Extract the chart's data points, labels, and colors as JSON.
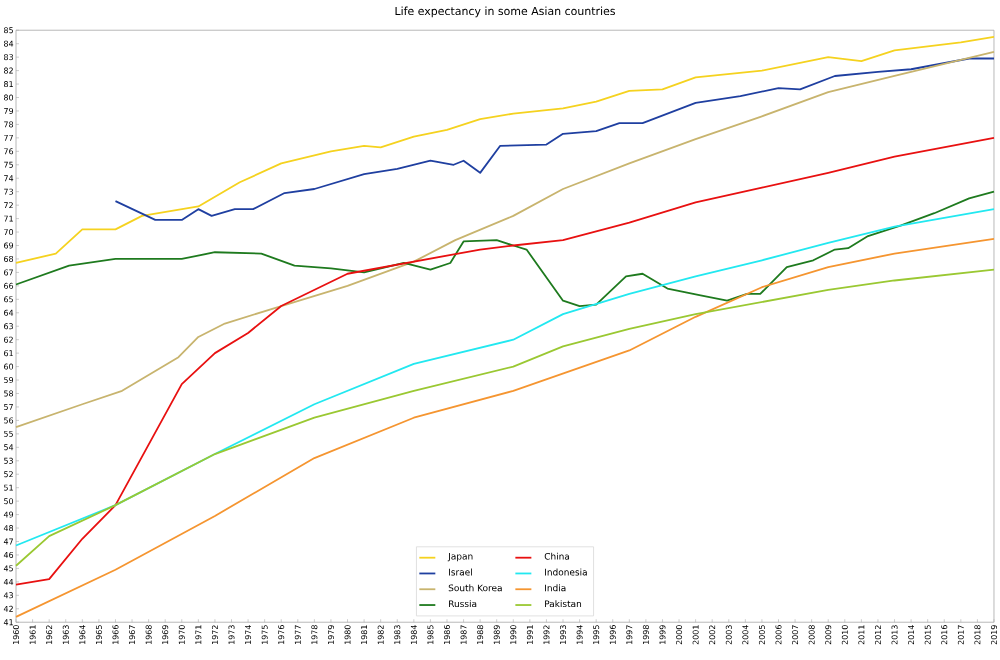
{
  "chart_data": {
    "type": "line",
    "title": "Life expectancy in some Asian countries",
    "xlim": [
      1960,
      2019
    ],
    "ylim": [
      41,
      85
    ],
    "xticks": [
      1960,
      1961,
      1962,
      1963,
      1964,
      1965,
      1966,
      1967,
      1968,
      1969,
      1970,
      1971,
      1972,
      1973,
      1974,
      1975,
      1976,
      1977,
      1978,
      1979,
      1980,
      1981,
      1982,
      1983,
      1984,
      1985,
      1986,
      1987,
      1988,
      1989,
      1990,
      1991,
      1992,
      1993,
      1994,
      1995,
      1996,
      1997,
      1998,
      1999,
      2000,
      2001,
      2002,
      2003,
      2004,
      2005,
      2006,
      2007,
      2008,
      2009,
      2010,
      2011,
      2012,
      2013,
      2014,
      2015,
      2016,
      2017,
      2018,
      2019
    ],
    "yticks": [
      41,
      42,
      43,
      44,
      45,
      46,
      47,
      48,
      49,
      50,
      51,
      52,
      53,
      54,
      55,
      56,
      57,
      58,
      59,
      60,
      61,
      62,
      63,
      64,
      65,
      66,
      67,
      68,
      69,
      70,
      71,
      72,
      73,
      74,
      75,
      76,
      77,
      78,
      79,
      80,
      81,
      82,
      83,
      84,
      85
    ],
    "legend": "bottom",
    "marker": "none",
    "line_style": "solid",
    "series": [
      {
        "name": "Japan",
        "color": "#f5d21f",
        "x": [
          1960,
          1962.4,
          1964,
          1966,
          1967.6,
          1971,
          1973.5,
          1976,
          1979,
          1981,
          1982,
          1984,
          1986,
          1988,
          1990,
          1993,
          1995,
          1997,
          1999,
          2001,
          2005,
          2009,
          2011,
          2013,
          2017,
          2019
        ],
        "values": [
          67.7,
          68.4,
          70.2,
          70.2,
          71.2,
          71.9,
          73.7,
          75.1,
          76.0,
          76.4,
          76.3,
          77.1,
          77.6,
          78.4,
          78.8,
          79.2,
          79.7,
          80.5,
          80.6,
          81.5,
          82.0,
          83.0,
          82.7,
          83.5,
          84.1,
          84.5
        ]
      },
      {
        "name": "Israel",
        "color": "#1f3fa0",
        "x": [
          1966,
          1968.4,
          1970,
          1971,
          1971.8,
          1973.2,
          1974.3,
          1976.2,
          1978,
          1981,
          1983,
          1985,
          1986.4,
          1987,
          1988,
          1989.2,
          1992,
          1993,
          1995,
          1996.4,
          1997.8,
          2001,
          2003.7,
          2006,
          2007.3,
          2009.4,
          2012,
          2014,
          2017.5,
          2019
        ],
        "values": [
          72.3,
          70.9,
          70.9,
          71.7,
          71.2,
          71.7,
          71.7,
          72.9,
          73.2,
          74.3,
          74.7,
          75.3,
          75.0,
          75.3,
          74.4,
          76.4,
          76.5,
          77.3,
          77.5,
          78.1,
          78.1,
          79.6,
          80.1,
          80.7,
          80.6,
          81.6,
          81.9,
          82.1,
          82.9,
          82.9
        ]
      },
      {
        "name": "South Korea",
        "color": "#c8b46e",
        "x": [
          1960,
          1964,
          1966.4,
          1969.8,
          1971,
          1972.6,
          1976,
          1980,
          1984,
          1986.5,
          1990,
          1993,
          1997,
          2001,
          2005,
          2009,
          2013,
          2017,
          2019
        ],
        "values": [
          55.5,
          57.2,
          58.2,
          60.7,
          62.2,
          63.2,
          64.5,
          66.0,
          67.8,
          69.4,
          71.2,
          73.2,
          75.1,
          76.9,
          78.6,
          80.4,
          81.6,
          82.8,
          83.4
        ]
      },
      {
        "name": "Russia",
        "color": "#1e7a1e",
        "x": [
          1960,
          1963.2,
          1966,
          1970,
          1972,
          1974.8,
          1976.8,
          1979,
          1981,
          1983.4,
          1985,
          1986.2,
          1987,
          1989,
          1990,
          1990.8,
          1993,
          1994,
          1995,
          1996.8,
          1997.8,
          1999.3,
          2001.3,
          2002.9,
          2004.1,
          2004.9,
          2006.5,
          2008.1,
          2009.4,
          2010.2,
          2011.4,
          2013.4,
          2015.4,
          2017.5,
          2019
        ],
        "values": [
          66.1,
          67.5,
          68.0,
          68.0,
          68.5,
          68.4,
          67.5,
          67.3,
          67.0,
          67.7,
          67.2,
          67.7,
          69.3,
          69.4,
          69.0,
          68.7,
          64.9,
          64.5,
          64.6,
          66.7,
          66.9,
          65.8,
          65.3,
          64.9,
          65.4,
          65.4,
          67.4,
          67.9,
          68.7,
          68.8,
          69.7,
          70.5,
          71.4,
          72.5,
          73.0
        ]
      },
      {
        "name": "China",
        "color": "#e81010",
        "x": [
          1960,
          1962,
          1964,
          1966,
          1968,
          1970,
          1972,
          1974,
          1976,
          1980,
          1984,
          1988,
          1990,
          1993,
          1997,
          2001,
          2005,
          2009,
          2013,
          2019
        ],
        "values": [
          43.8,
          44.2,
          47.2,
          49.7,
          54.2,
          58.7,
          61.0,
          62.5,
          64.5,
          66.9,
          67.8,
          68.7,
          69.0,
          69.4,
          70.7,
          72.2,
          73.3,
          74.4,
          75.6,
          77.0
        ]
      },
      {
        "name": "Indonesia",
        "color": "#22e8f0",
        "x": [
          1960,
          1966,
          1972,
          1978,
          1984,
          1990,
          1993,
          1997,
          2001,
          2005,
          2009,
          2013,
          2019
        ],
        "values": [
          46.7,
          49.7,
          53.5,
          57.2,
          60.2,
          62.0,
          63.9,
          65.4,
          66.7,
          67.9,
          69.2,
          70.4,
          71.7
        ]
      },
      {
        "name": "India",
        "color": "#f59530",
        "x": [
          1960,
          1966,
          1972,
          1978,
          1984,
          1990,
          1997,
          2001,
          2005,
          2009,
          2013,
          2019
        ],
        "values": [
          41.4,
          44.9,
          48.9,
          53.2,
          56.2,
          58.2,
          61.2,
          63.7,
          65.9,
          67.4,
          68.4,
          69.5
        ]
      },
      {
        "name": "Pakistan",
        "color": "#9ac832",
        "x": [
          1960,
          1962,
          1966,
          1972,
          1978,
          1984,
          1990,
          1993,
          1997,
          2001,
          2005,
          2009,
          2013,
          2019
        ],
        "values": [
          45.2,
          47.4,
          49.7,
          53.5,
          56.2,
          58.2,
          60.0,
          61.5,
          62.8,
          63.9,
          64.8,
          65.7,
          66.4,
          67.2
        ]
      }
    ]
  }
}
